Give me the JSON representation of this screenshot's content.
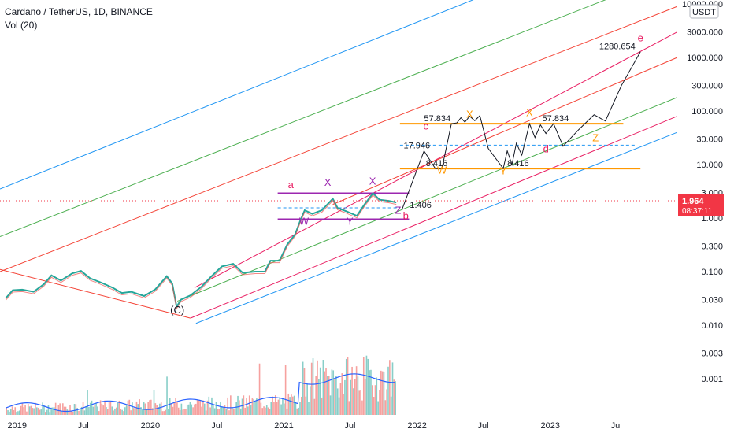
{
  "header": {
    "symbol_line": "Cardano / TetherUS, 1D, BINANCE",
    "indicator": "Vol (20)"
  },
  "currency_badge": "USDT",
  "price_badge": {
    "value": "1.964",
    "countdown": "08:37:11",
    "color": "#f23645"
  },
  "chart_data": {
    "type": "line",
    "scale": "log",
    "ylim": [
      0.0004,
      10000
    ],
    "xlim": [
      "2018-11-15",
      "2023-12-15"
    ],
    "grid": false,
    "y_ticks": [
      {
        "value": 10000,
        "label": "10000.000"
      },
      {
        "value": 3000,
        "label": "3000.000"
      },
      {
        "value": 1000,
        "label": "1000.000"
      },
      {
        "value": 300,
        "label": "300.000"
      },
      {
        "value": 100,
        "label": "100.000"
      },
      {
        "value": 30,
        "label": "30.000"
      },
      {
        "value": 10,
        "label": "10.000"
      },
      {
        "value": 3,
        "label": "3.000"
      },
      {
        "value": 1,
        "label": "1.000"
      },
      {
        "value": 0.3,
        "label": "0.300"
      },
      {
        "value": 0.1,
        "label": "0.100"
      },
      {
        "value": 0.03,
        "label": "0.030"
      },
      {
        "value": 0.01,
        "label": "0.010"
      },
      {
        "value": 0.003,
        "label": "0.003"
      },
      {
        "value": 0.001,
        "label": "0.001"
      }
    ],
    "x_ticks": [
      {
        "date": "2019-01-01",
        "label": "2019"
      },
      {
        "date": "2019-07-01",
        "label": "Jul"
      },
      {
        "date": "2020-01-01",
        "label": "2020"
      },
      {
        "date": "2020-07-01",
        "label": "Jul"
      },
      {
        "date": "2021-01-01",
        "label": "2021"
      },
      {
        "date": "2021-07-01",
        "label": "Jul"
      },
      {
        "date": "2022-01-01",
        "label": "2022"
      },
      {
        "date": "2022-07-01",
        "label": "Jul"
      },
      {
        "date": "2023-01-01",
        "label": "2023"
      },
      {
        "date": "2023-07-01",
        "label": "Jul"
      }
    ],
    "price_series": [
      [
        "2018-12-01",
        0.032
      ],
      [
        "2018-12-20",
        0.045
      ],
      [
        "2019-01-15",
        0.046
      ],
      [
        "2019-02-15",
        0.042
      ],
      [
        "2019-03-15",
        0.058
      ],
      [
        "2019-04-05",
        0.085
      ],
      [
        "2019-05-01",
        0.068
      ],
      [
        "2019-06-01",
        0.093
      ],
      [
        "2019-06-25",
        0.103
      ],
      [
        "2019-07-20",
        0.075
      ],
      [
        "2019-08-20",
        0.062
      ],
      [
        "2019-09-20",
        0.05
      ],
      [
        "2019-10-15",
        0.04
      ],
      [
        "2019-11-10",
        0.042
      ],
      [
        "2019-12-15",
        0.035
      ],
      [
        "2020-01-15",
        0.047
      ],
      [
        "2020-02-15",
        0.082
      ],
      [
        "2020-03-01",
        0.06
      ],
      [
        "2020-03-13",
        0.022
      ],
      [
        "2020-03-25",
        0.03
      ],
      [
        "2020-04-20",
        0.036
      ],
      [
        "2020-05-20",
        0.052
      ],
      [
        "2020-06-15",
        0.08
      ],
      [
        "2020-07-15",
        0.125
      ],
      [
        "2020-08-15",
        0.14
      ],
      [
        "2020-09-10",
        0.095
      ],
      [
        "2020-10-15",
        0.1
      ],
      [
        "2020-11-10",
        0.1
      ],
      [
        "2020-11-25",
        0.16
      ],
      [
        "2020-12-20",
        0.16
      ],
      [
        "2021-01-10",
        0.32
      ],
      [
        "2021-02-01",
        0.5
      ],
      [
        "2021-02-15",
        0.9
      ],
      [
        "2021-02-27",
        1.4
      ],
      [
        "2021-03-20",
        1.2
      ],
      [
        "2021-04-15",
        1.4
      ],
      [
        "2021-05-15",
        2.3
      ],
      [
        "2021-05-28",
        1.55
      ],
      [
        "2021-06-20",
        1.35
      ],
      [
        "2021-07-20",
        1.1
      ],
      [
        "2021-08-10",
        1.8
      ],
      [
        "2021-09-02",
        2.9
      ],
      [
        "2021-09-20",
        2.2
      ],
      [
        "2021-10-15",
        2.1
      ],
      [
        "2021-11-05",
        1.96
      ]
    ],
    "projection_path": [
      [
        "2021-11-20",
        1.406
      ],
      [
        "2022-01-20",
        17.946
      ],
      [
        "2022-02-20",
        8.416
      ],
      [
        "2022-03-10",
        8.416
      ],
      [
        "2022-04-05",
        57.834
      ],
      [
        "2022-04-20",
        60
      ],
      [
        "2022-05-01",
        75
      ],
      [
        "2022-05-12",
        62
      ],
      [
        "2022-05-25",
        80
      ],
      [
        "2022-06-08",
        66
      ],
      [
        "2022-06-22",
        82
      ],
      [
        "2022-07-15",
        20
      ],
      [
        "2022-08-25",
        8.416
      ],
      [
        "2022-09-05",
        18
      ],
      [
        "2022-09-18",
        10
      ],
      [
        "2022-09-30",
        25
      ],
      [
        "2022-10-15",
        15
      ],
      [
        "2022-11-05",
        57.834
      ],
      [
        "2022-11-20",
        32
      ],
      [
        "2022-12-05",
        55
      ],
      [
        "2022-12-20",
        38
      ],
      [
        "2023-01-10",
        58
      ],
      [
        "2023-02-05",
        22
      ],
      [
        "2023-03-20",
        45
      ],
      [
        "2023-05-01",
        85
      ],
      [
        "2023-06-01",
        65
      ],
      [
        "2023-07-15",
        300
      ],
      [
        "2023-09-05",
        1280.654
      ]
    ],
    "price_labels": [
      {
        "date": "2021-12-12",
        "value": 1.406,
        "text": "1.406"
      },
      {
        "date": "2021-11-25",
        "value": 17.946,
        "text": "17.946"
      },
      {
        "date": "2022-01-25",
        "value": 8.416,
        "text": "8.416"
      },
      {
        "date": "2022-01-20",
        "value": 57.834,
        "text": "57.834"
      },
      {
        "date": "2022-09-05",
        "value": 8.416,
        "text": "8.416"
      },
      {
        "date": "2022-12-10",
        "value": 57.834,
        "text": "57.834"
      },
      {
        "date": "2023-05-15",
        "value": 1280.654,
        "text": "1280.654"
      }
    ],
    "wave_labels": [
      {
        "text": "(C)",
        "date": "2020-03-15",
        "value": 0.0165,
        "color": "#131722"
      },
      {
        "text": "a",
        "date": "2021-01-20",
        "value": 3.6,
        "color": "#e91e63"
      },
      {
        "text": "W",
        "date": "2021-02-25",
        "value": 0.75,
        "color": "#9c27b0"
      },
      {
        "text": "X",
        "date": "2021-05-01",
        "value": 4.0,
        "color": "#9c27b0"
      },
      {
        "text": "Y",
        "date": "2021-07-01",
        "value": 0.75,
        "color": "#9c27b0"
      },
      {
        "text": "X",
        "date": "2021-09-01",
        "value": 4.2,
        "color": "#9c27b0"
      },
      {
        "text": "Z",
        "date": "2021-11-10",
        "value": 1.2,
        "color": "#9c27b0"
      },
      {
        "text": "b",
        "date": "2021-12-01",
        "value": 0.95,
        "color": "#e91e63"
      },
      {
        "text": "c",
        "date": "2022-01-25",
        "value": 45,
        "color": "#e91e63"
      },
      {
        "text": "W",
        "date": "2022-03-10",
        "value": 6.8,
        "color": "#ff9800"
      },
      {
        "text": "X",
        "date": "2022-05-25",
        "value": 75,
        "color": "#ff9800"
      },
      {
        "text": "Y",
        "date": "2022-08-25",
        "value": 6.5,
        "color": "#ff9800"
      },
      {
        "text": "X",
        "date": "2022-11-05",
        "value": 80,
        "color": "#ff9800"
      },
      {
        "text": "d",
        "date": "2022-12-20",
        "value": 17,
        "color": "#e91e63"
      },
      {
        "text": "Z",
        "date": "2023-05-05",
        "value": 27,
        "color": "#ff9800"
      },
      {
        "text": "e",
        "date": "2023-09-05",
        "value": 2000,
        "color": "#e91e63"
      }
    ],
    "trend_lines": [
      {
        "color": "#2196f3",
        "p1": [
          "2018-11-15",
          3.5
        ],
        "p2": [
          "2023-12-15",
          400000
        ]
      },
      {
        "color": "#4caf50",
        "p1": [
          "2018-11-15",
          0.45
        ],
        "p2": [
          "2023-12-15",
          40000
        ]
      },
      {
        "color": "#f44336",
        "p1": [
          "2018-11-15",
          0.1
        ],
        "p2": [
          "2023-12-15",
          9000
        ]
      },
      {
        "color": "#e91e63",
        "p1": [
          "2020-05-01",
          0.05
        ],
        "p2": [
          "2023-12-15",
          3000
        ]
      },
      {
        "color": "#4caf50",
        "p1": [
          "2020-03-15",
          0.028
        ],
        "p2": [
          "2023-12-15",
          180
        ]
      },
      {
        "color": "#e91e63",
        "p1": [
          "2020-04-20",
          0.0135
        ],
        "p2": [
          "2023-12-15",
          80
        ]
      },
      {
        "color": "#2196f3",
        "p1": [
          "2020-05-05",
          0.0108
        ],
        "p2": [
          "2023-12-15",
          40
        ]
      },
      {
        "color": "#f44336",
        "p1": [
          "2018-11-15",
          0.11
        ],
        "p2": [
          "2020-04-20",
          0.0135
        ]
      },
      {
        "color": "#f44336",
        "p1": [
          "2021-05-15",
          1.8
        ],
        "p2": [
          "2023-12-15",
          1000
        ]
      }
    ],
    "horizontal_levels": [
      {
        "color": "#9c27b0",
        "value": 2.9,
        "from": "2020-12-15",
        "to": "2021-12-10",
        "dashed": false
      },
      {
        "color": "#9c27b0",
        "value": 0.95,
        "from": "2020-12-15",
        "to": "2021-12-10",
        "dashed": false
      },
      {
        "color": "#2196f3",
        "value": 1.55,
        "from": "2020-12-15",
        "to": "2021-11-15",
        "dashed": true
      },
      {
        "color": "#ff9800",
        "value": 57.834,
        "from": "2021-11-15",
        "to": "2023-07-20",
        "dashed": false
      },
      {
        "color": "#ff9800",
        "value": 8.416,
        "from": "2021-11-15",
        "to": "2023-09-05",
        "dashed": false
      },
      {
        "color": "#2196f3",
        "value": 23,
        "from": "2021-11-15",
        "to": "2023-08-25",
        "dashed": true
      }
    ],
    "volume": {
      "ma_label": "Vol (20)",
      "bars_from": "2018-12-01",
      "bars_to": "2021-11-05"
    }
  }
}
